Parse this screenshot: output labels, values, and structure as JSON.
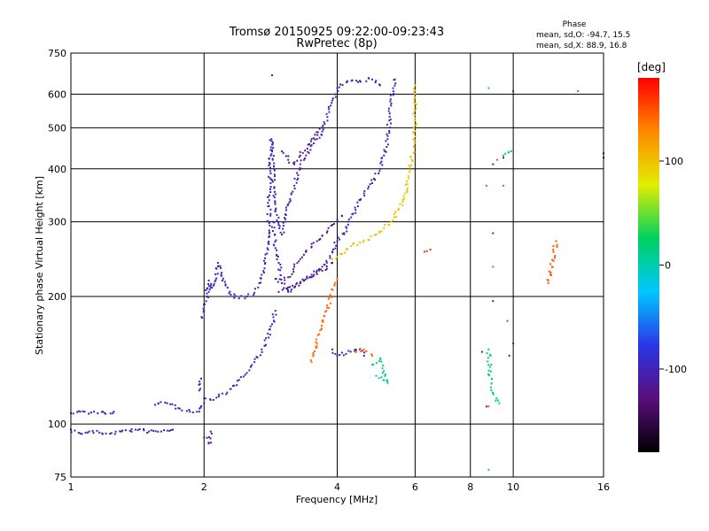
{
  "chart_data": {
    "type": "scatter",
    "title": "Tromsø 20150925 09:22:00-09:23:43",
    "subtitle": "RwPretec (8p)",
    "xlabel": "Frequency [MHz]",
    "ylabel": "Stationary phase Virtual Height [km]",
    "xscale": "log",
    "yscale": "log",
    "xlim": [
      1,
      16
    ],
    "ylim": [
      75,
      750
    ],
    "xticks": [
      1,
      2,
      4,
      6,
      8,
      10,
      16
    ],
    "yticks": [
      75,
      100,
      200,
      300,
      400,
      500,
      600,
      750
    ],
    "grid": true,
    "phase_stats": {
      "heading": "Phase",
      "line1": "mean, sd,O: -94.7, 15.5",
      "line2": "mean, sd,X:  88.9, 16.8"
    },
    "colorbar": {
      "label": "[deg]",
      "ticks": [
        100,
        0,
        -100
      ],
      "range": [
        -180,
        180
      ],
      "colors": [
        "#000000",
        "#5a0e7a",
        "#2b36e8",
        "#00c8ff",
        "#00d060",
        "#e0ee00",
        "#ff8800",
        "#ff0000"
      ]
    },
    "series": [
      {
        "phase": -105,
        "points": [
          [
            1.0,
            97
          ],
          [
            1.05,
            95
          ],
          [
            1.1,
            96
          ],
          [
            1.2,
            95
          ],
          [
            1.3,
            96
          ],
          [
            1.4,
            97
          ],
          [
            1.5,
            96
          ],
          [
            1.6,
            96
          ],
          [
            1.7,
            97
          ]
        ]
      },
      {
        "phase": -100,
        "points": [
          [
            1.0,
            106
          ],
          [
            1.05,
            107
          ],
          [
            1.15,
            106
          ],
          [
            1.25,
            107
          ]
        ]
      },
      {
        "phase": -100,
        "points": [
          [
            1.55,
            111
          ],
          [
            1.65,
            112
          ],
          [
            1.75,
            109
          ],
          [
            1.85,
            108
          ],
          [
            1.95,
            107
          ],
          [
            2.0,
            112
          ]
        ]
      },
      {
        "phase": -110,
        "points": [
          [
            1.95,
            120
          ],
          [
            1.97,
            128
          ],
          [
            2.0,
            93
          ],
          [
            2.05,
            90
          ],
          [
            2.07,
            96
          ]
        ]
      },
      {
        "phase": -100,
        "points": [
          [
            2.0,
            115
          ],
          [
            2.1,
            114
          ],
          [
            2.2,
            118
          ],
          [
            2.3,
            121
          ],
          [
            2.4,
            127
          ],
          [
            2.5,
            132
          ],
          [
            2.6,
            140
          ],
          [
            2.7,
            150
          ],
          [
            2.8,
            160
          ],
          [
            2.85,
            172
          ],
          [
            2.9,
            185
          ]
        ]
      },
      {
        "phase": -100,
        "points": [
          [
            1.98,
            178
          ],
          [
            2.0,
            185
          ],
          [
            2.03,
            200
          ],
          [
            2.05,
            218
          ],
          [
            2.07,
            210
          ]
        ]
      },
      {
        "phase": -100,
        "points": [
          [
            2.05,
            205
          ],
          [
            2.1,
            212
          ],
          [
            2.15,
            240
          ],
          [
            2.2,
            218
          ],
          [
            2.3,
            202
          ],
          [
            2.4,
            198
          ],
          [
            2.5,
            200
          ],
          [
            2.6,
            204
          ],
          [
            2.65,
            210
          ],
          [
            2.7,
            225
          ],
          [
            2.75,
            240
          ],
          [
            2.78,
            260
          ],
          [
            2.8,
            300
          ],
          [
            2.82,
            380
          ],
          [
            2.83,
            430
          ],
          [
            2.84,
            470
          ],
          [
            2.86,
            420
          ],
          [
            2.88,
            360
          ],
          [
            2.9,
            320
          ],
          [
            2.95,
            295
          ],
          [
            3.0,
            280
          ],
          [
            3.05,
            300
          ],
          [
            3.1,
            330
          ],
          [
            3.15,
            350
          ],
          [
            3.2,
            365
          ],
          [
            3.3,
            410
          ],
          [
            3.4,
            430
          ],
          [
            3.5,
            455
          ],
          [
            3.6,
            470
          ],
          [
            3.7,
            490
          ],
          [
            3.8,
            530
          ],
          [
            3.9,
            580
          ],
          [
            4.0,
            620
          ],
          [
            4.2,
            640
          ],
          [
            4.5,
            645
          ],
          [
            4.8,
            650
          ],
          [
            5.0,
            630
          ]
        ]
      },
      {
        "phase": -100,
        "points": [
          [
            2.86,
            300
          ],
          [
            2.9,
            260
          ],
          [
            2.95,
            240
          ],
          [
            3.0,
            215
          ],
          [
            3.1,
            205
          ],
          [
            3.2,
            210
          ],
          [
            3.3,
            215
          ],
          [
            3.5,
            225
          ],
          [
            3.7,
            235
          ],
          [
            3.9,
            255
          ],
          [
            4.0,
            270
          ],
          [
            4.2,
            290
          ],
          [
            4.4,
            320
          ],
          [
            4.6,
            350
          ],
          [
            4.8,
            370
          ],
          [
            5.0,
            400
          ],
          [
            5.1,
            430
          ],
          [
            5.2,
            470
          ],
          [
            5.25,
            520
          ],
          [
            5.3,
            570
          ],
          [
            5.35,
            620
          ],
          [
            5.4,
            650
          ]
        ]
      },
      {
        "phase": -115,
        "points": [
          [
            2.9,
            220
          ],
          [
            3.0,
            215
          ],
          [
            3.1,
            222
          ],
          [
            3.2,
            235
          ],
          [
            3.3,
            245
          ],
          [
            3.4,
            255
          ],
          [
            3.5,
            262
          ],
          [
            3.6,
            270
          ],
          [
            3.7,
            278
          ],
          [
            3.8,
            285
          ],
          [
            3.9,
            295
          ],
          [
            4.0,
            300
          ],
          [
            4.1,
            310
          ]
        ]
      },
      {
        "phase": -125,
        "points": [
          [
            2.95,
            205
          ],
          [
            3.1,
            210
          ],
          [
            3.3,
            215
          ],
          [
            3.5,
            222
          ],
          [
            3.7,
            230
          ],
          [
            3.9,
            240
          ]
        ]
      },
      {
        "phase": -120,
        "points": [
          [
            3.0,
            440
          ],
          [
            3.1,
            420
          ],
          [
            3.2,
            410
          ],
          [
            3.3,
            430
          ],
          [
            3.5,
            470
          ],
          [
            3.7,
            500
          ]
        ]
      },
      {
        "phase": 100,
        "points": [
          [
            3.9,
            245
          ],
          [
            4.0,
            248
          ],
          [
            4.1,
            252
          ],
          [
            4.2,
            258
          ],
          [
            4.3,
            263
          ],
          [
            4.5,
            268
          ],
          [
            4.7,
            272
          ],
          [
            4.9,
            280
          ],
          [
            5.1,
            290
          ],
          [
            5.3,
            300
          ],
          [
            5.5,
            320
          ],
          [
            5.7,
            350
          ],
          [
            5.8,
            380
          ],
          [
            5.9,
            420
          ],
          [
            5.95,
            470
          ],
          [
            6.0,
            520
          ],
          [
            6.0,
            570
          ],
          [
            6.0,
            630
          ]
        ]
      },
      {
        "phase": -100,
        "points": [
          [
            3.9,
            150
          ],
          [
            4.0,
            145
          ],
          [
            4.5,
            150
          ],
          [
            4.6,
            145
          ]
        ]
      },
      {
        "phase": 10,
        "points": [
          [
            4.8,
            138
          ],
          [
            5.0,
            143
          ],
          [
            5.2,
            125
          ],
          [
            4.9,
            130
          ]
        ]
      },
      {
        "phase": 140,
        "points": [
          [
            4.4,
            148
          ],
          [
            4.6,
            150
          ],
          [
            4.8,
            145
          ],
          [
            3.5,
            140
          ],
          [
            3.7,
            175
          ],
          [
            4.0,
            220
          ]
        ]
      },
      {
        "phase": -100,
        "points": [
          [
            8.5,
            148
          ],
          [
            8.7,
            110
          ],
          [
            9.0,
            410
          ],
          [
            9.0,
            282
          ],
          [
            9.5,
            425
          ],
          [
            10.0,
            155
          ],
          [
            10.0,
            610
          ],
          [
            9.8,
            145
          ],
          [
            9.0,
            195
          ]
        ]
      },
      {
        "phase": 20,
        "points": [
          [
            8.8,
            150
          ],
          [
            8.9,
            122
          ],
          [
            9.3,
            112
          ],
          [
            8.8,
            620
          ],
          [
            9.5,
            430
          ],
          [
            9.9,
            440
          ],
          [
            8.8,
            78
          ]
        ]
      },
      {
        "phase": 150,
        "points": [
          [
            8.7,
            365
          ],
          [
            9.0,
            235
          ],
          [
            9.5,
            365
          ],
          [
            8.8,
            110
          ],
          [
            9.2,
            420
          ],
          [
            12.0,
            215
          ],
          [
            12.5,
            270
          ],
          [
            14.0,
            610
          ]
        ]
      },
      {
        "phase": 160,
        "points": [
          [
            6.3,
            255
          ],
          [
            6.5,
            258
          ],
          [
            9.7,
            175
          ]
        ]
      },
      {
        "phase": -105,
        "points": [
          [
            16,
            425
          ],
          [
            16,
            435
          ],
          [
            2.85,
            665
          ]
        ]
      }
    ]
  }
}
